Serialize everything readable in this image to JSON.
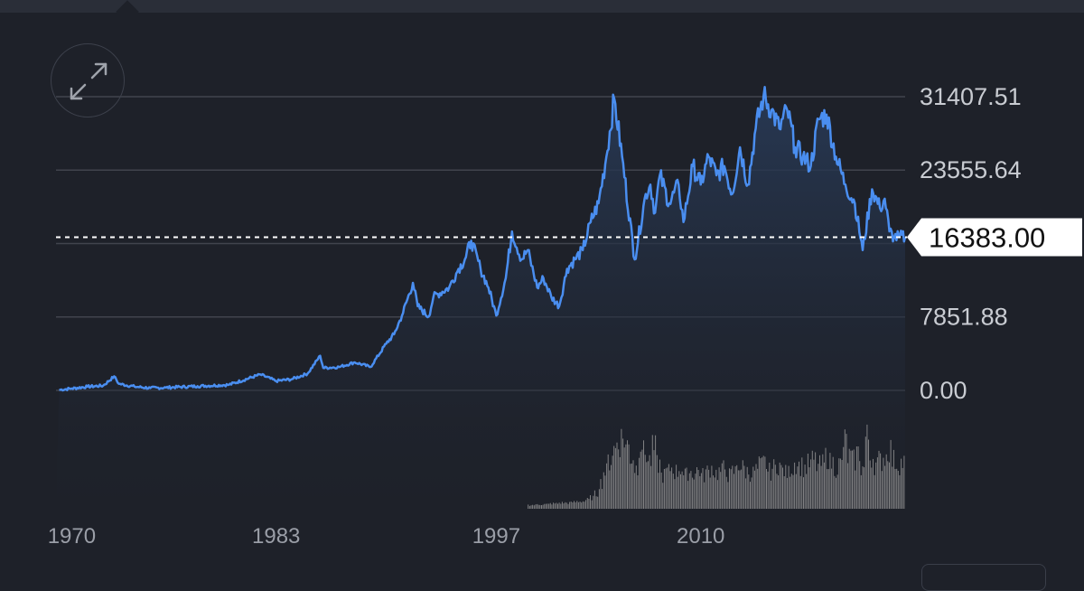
{
  "chart_data": {
    "type": "area",
    "title": "",
    "xlabel": "",
    "ylabel": "",
    "current_value": "16383.00",
    "y_ticks": [
      "31407.51",
      "23555.64",
      "7851.88",
      "0.00"
    ],
    "y_tick_values": [
      31407.51,
      23555.64,
      7851.88,
      0
    ],
    "x_ticks": [
      "1970",
      "1983",
      "1997",
      "2010"
    ],
    "x_tick_values": [
      1970,
      1983,
      1997,
      2010
    ],
    "xlim": [
      1969,
      2023
    ],
    "ylim": [
      0,
      31407.51
    ],
    "grid": true,
    "series": [
      {
        "x": [
          1969.2,
          1970,
          1971,
          1972,
          1972.7,
          1973,
          1974,
          1975,
          1976,
          1978,
          1980,
          1982,
          1983,
          1984,
          1985,
          1985.8,
          1986,
          1987,
          1988,
          1989,
          1990,
          1990.5,
          1991,
          1991.7,
          1992,
          1992.7,
          1993,
          1994,
          1994.6,
          1995,
          1995.4,
          1996,
          1996.5,
          1997,
          1997.6,
          1998,
          1998.6,
          1999,
          1999.6,
          2000,
          2000.5,
          2001,
          2001.5,
          2002,
          2002.5,
          2003,
          2003.5,
          2004,
          2004.5,
          2005,
          2005.8,
          2006.5,
          2006.8,
          2007.1,
          2007.4,
          2008,
          2008.6,
          2008.9,
          2009.5,
          2010,
          2010.5,
          2011,
          2011.5,
          2012,
          2012.5,
          2013,
          2013.5,
          2014,
          2014.5,
          2015,
          2015.5,
          2016,
          2016.5,
          2017,
          2017.5,
          2018,
          2018.6,
          2019.2,
          2019.8,
          2020.3,
          2020.9,
          2021.4,
          2021.7,
          2022,
          2022.3,
          2022.6,
          2023
        ],
        "y": [
          50,
          200,
          400,
          500,
          1500,
          700,
          400,
          250,
          300,
          450,
          600,
          1700,
          1000,
          1200,
          1800,
          3700,
          2400,
          2500,
          3000,
          2500,
          5000,
          6000,
          8000,
          11500,
          9000,
          7900,
          10000,
          11000,
          13000,
          14000,
          16000,
          13000,
          11000,
          8000,
          12000,
          17000,
          14000,
          15000,
          11000,
          12000,
          10000,
          9000,
          13000,
          14000,
          15000,
          18000,
          20000,
          25000,
          31200,
          25000,
          14000,
          21000,
          22000,
          19000,
          23000,
          20000,
          22000,
          18000,
          24000,
          22000,
          25000,
          23000,
          24000,
          21000,
          26000,
          22000,
          28000,
          31500,
          30000,
          28000,
          30000,
          26000,
          25000,
          24000,
          29000,
          29500,
          25000,
          22000,
          20000,
          15000,
          21500,
          19500,
          20500,
          17000,
          16383,
          16383,
          16383
        ]
      }
    ],
    "volume": {
      "x_start": 1999,
      "x_end": 2023,
      "values": [
        0.05,
        0.05,
        0.06,
        0.06,
        0.06,
        0.07,
        0.07,
        0.08,
        0.08,
        0.08,
        0.09,
        0.1,
        0.1,
        0.12,
        0.15,
        0.2,
        0.35,
        0.5,
        0.65,
        0.8,
        0.9,
        0.95,
        0.85,
        0.7,
        0.55,
        0.9,
        0.75,
        0.65,
        0.8,
        0.6,
        0.45,
        0.5,
        0.55,
        0.5,
        0.55,
        0.45,
        0.5,
        0.48,
        0.52,
        0.45,
        0.5,
        0.55,
        0.48,
        0.5,
        0.55,
        0.45,
        0.5,
        0.6,
        0.55,
        0.5,
        0.48,
        0.52,
        0.58,
        0.62,
        0.5,
        0.55,
        0.6,
        0.52,
        0.48,
        0.55,
        0.62,
        0.58,
        0.55,
        0.6,
        0.65,
        0.58,
        0.6,
        0.7,
        0.62,
        0.55,
        0.6,
        0.9,
        0.7,
        0.65,
        0.75,
        0.55,
        0.95,
        0.7,
        0.6,
        0.65,
        0.7,
        0.8,
        0.65,
        0.6,
        0.62
      ]
    },
    "colors": {
      "line": "#4a8ef0",
      "area_top": "#283a57",
      "area_bottom": "#1e2129",
      "grid": "#41444d",
      "volume": "#9a9a9a",
      "price_label_bg": "#ffffff"
    }
  },
  "expand_icon": "expand-arrows-icon"
}
